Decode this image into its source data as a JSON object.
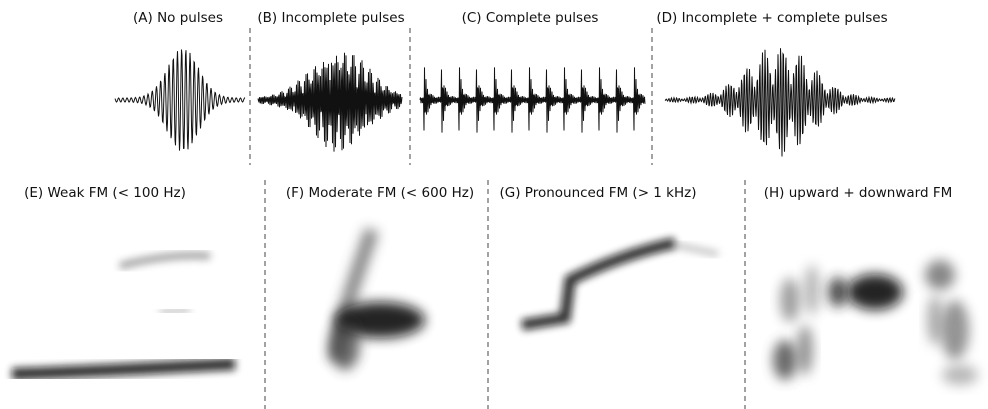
{
  "panels": [
    {
      "label": "(A) No pulses"
    },
    {
      "label": "(B) Incomplete pulses"
    },
    {
      "label": "(C) Complete pulses"
    },
    {
      "label": "(D) Incomplete + complete pulses"
    },
    {
      "label": "(E) Weak FM (< 100 Hz)"
    },
    {
      "label": "(F) Moderate FM (< 600 Hz)"
    },
    {
      "label": "(G) Pronounced FM (> 1 kHz)"
    },
    {
      "label": "(H) upward + downward FM"
    }
  ]
}
